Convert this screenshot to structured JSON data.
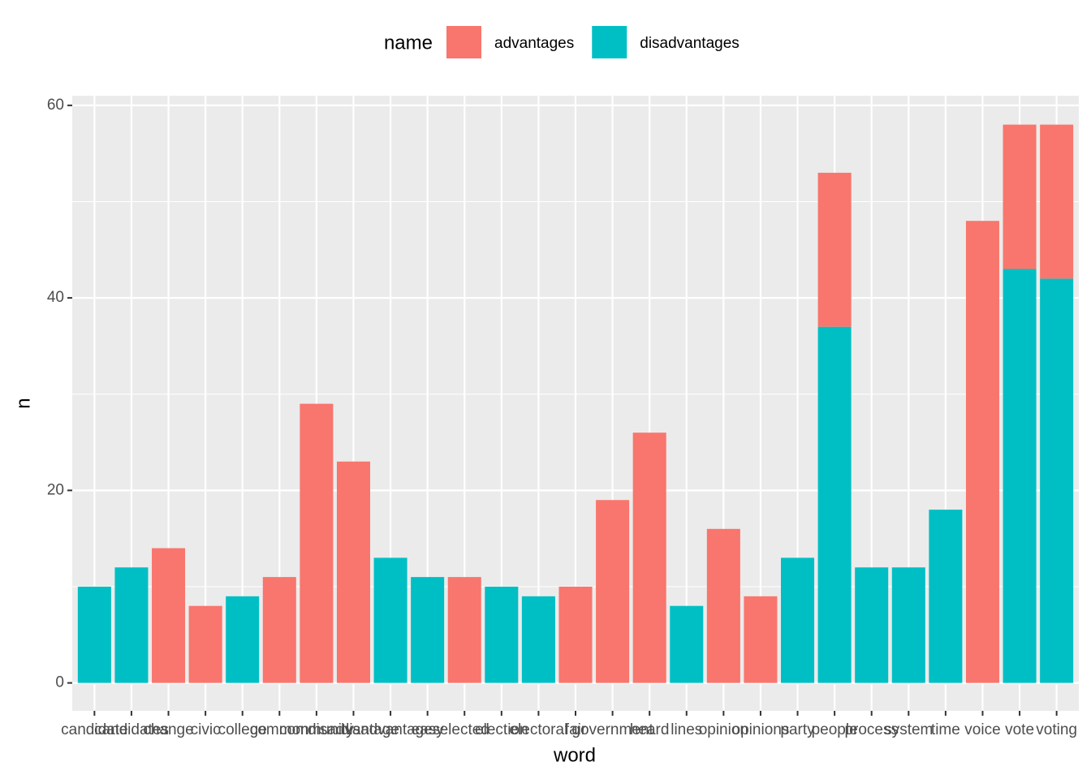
{
  "chart_data": {
    "type": "stacked_bar",
    "x_label": "word",
    "y_label": "n",
    "legend_title": "name",
    "legend_position": "top",
    "categories": [
      "candidate",
      "candidates",
      "change",
      "civic",
      "college",
      "common",
      "community",
      "disadvantage",
      "disadvantages",
      "easy",
      "elected",
      "election",
      "electoral",
      "fair",
      "government",
      "heard",
      "lines",
      "opinion",
      "opinions",
      "party",
      "people",
      "process",
      "system",
      "time",
      "voice",
      "vote",
      "voting"
    ],
    "series": [
      {
        "name": "advantages",
        "color": "#f8766d",
        "values": [
          null,
          null,
          14,
          8,
          null,
          11,
          29,
          23,
          null,
          null,
          11,
          null,
          null,
          10,
          19,
          26,
          null,
          16,
          9,
          null,
          16,
          null,
          null,
          null,
          48,
          15,
          16
        ]
      },
      {
        "name": "disadvantages",
        "color": "#00bfc4",
        "values": [
          10,
          12,
          null,
          null,
          9,
          null,
          null,
          null,
          13,
          11,
          null,
          10,
          9,
          null,
          null,
          null,
          8,
          null,
          null,
          13,
          37,
          12,
          12,
          18,
          null,
          43,
          42
        ]
      }
    ],
    "stack_order": [
      "disadvantages",
      "advantages"
    ],
    "ylim": [
      -2.9,
      61
    ],
    "yticks": [
      0,
      20,
      40,
      60
    ],
    "yminor": [
      10,
      30,
      50
    ],
    "grid": true
  }
}
